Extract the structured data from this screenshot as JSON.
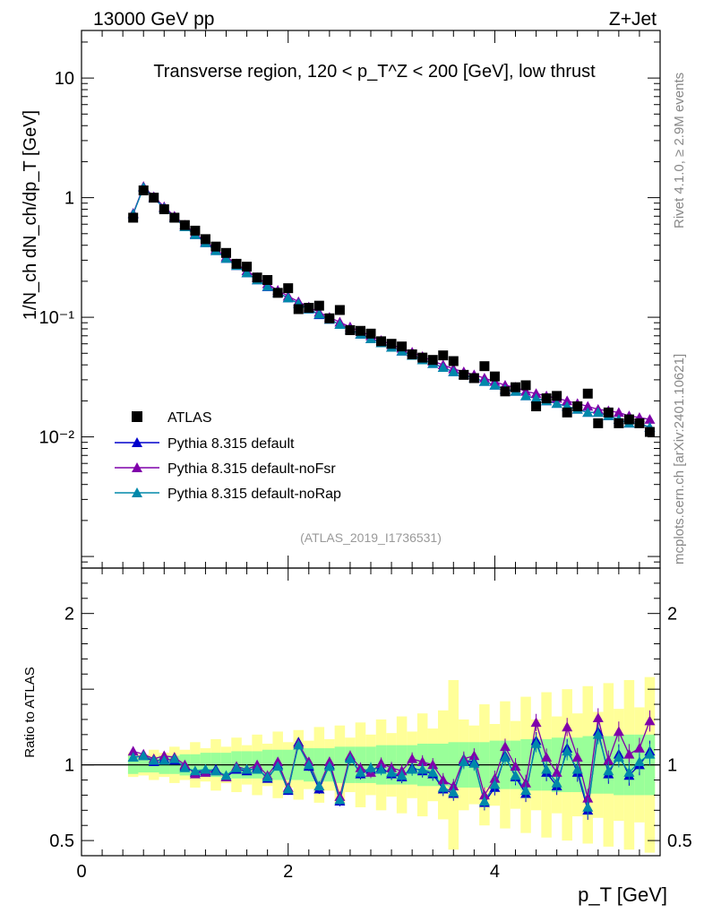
{
  "header": {
    "left": "13000 GeV pp",
    "right": "Z+Jet"
  },
  "side": {
    "rivet": "Rivet 4.1.0, ≥ 2.9M events",
    "mcplots": "mcplots.cern.ch [arXiv:2401.10621]"
  },
  "colors": {
    "atlas": "#000000",
    "default": "#0000cc",
    "noFsr": "#7f00aa",
    "noRap": "#0088aa",
    "band_inner": "#99ff99",
    "band_outer": "#ffff99"
  },
  "chart_data": [
    {
      "type": "scatter",
      "scale": "log",
      "title": "Transverse region, 120 < p_T^Z < 200 [GeV], low thrust",
      "ylabel": "1/N_ch dN_ch/dp_T [GeV]",
      "xlim": [
        0,
        5.6
      ],
      "ylim": [
        0.0008,
        25
      ],
      "yticks": [
        {
          "v": 10,
          "label": "10"
        },
        {
          "v": 1,
          "label": "1"
        },
        {
          "v": 0.1,
          "label": "10⁻¹"
        },
        {
          "v": 0.01,
          "label": "10⁻²"
        }
      ],
      "analysis_id": "(ATLAS_2019_I1736531)",
      "legend": [
        "ATLAS",
        "Pythia 8.315 default",
        "Pythia 8.315 default-noFsr",
        "Pythia 8.315 default-noRap"
      ],
      "x": [
        0.5,
        0.6,
        0.7,
        0.8,
        0.9,
        1.0,
        1.1,
        1.2,
        1.3,
        1.4,
        1.5,
        1.6,
        1.7,
        1.8,
        1.9,
        2.0,
        2.1,
        2.2,
        2.3,
        2.4,
        2.5,
        2.6,
        2.7,
        2.8,
        2.9,
        3.0,
        3.1,
        3.2,
        3.3,
        3.4,
        3.5,
        3.6,
        3.7,
        3.8,
        3.9,
        4.0,
        4.1,
        4.2,
        4.3,
        4.4,
        4.5,
        4.6,
        4.7,
        4.8,
        4.9,
        5.0,
        5.1,
        5.2,
        5.3,
        5.4,
        5.5
      ],
      "series": [
        {
          "name": "ATLAS",
          "values": [
            0.68,
            1.15,
            1.0,
            0.8,
            0.68,
            0.59,
            0.53,
            0.45,
            0.39,
            0.345,
            0.28,
            0.265,
            0.215,
            0.205,
            0.16,
            0.175,
            0.117,
            0.12,
            0.125,
            0.098,
            0.115,
            0.078,
            0.077,
            0.073,
            0.063,
            0.06,
            0.057,
            0.049,
            0.046,
            0.044,
            0.048,
            0.043,
            0.033,
            0.031,
            0.039,
            0.032,
            0.024,
            0.026,
            0.027,
            0.018,
            0.021,
            0.022,
            0.016,
            0.018,
            0.023,
            0.013,
            0.016,
            0.013,
            0.014,
            0.013,
            0.011
          ]
        },
        {
          "name": "Pythia 8.315 default",
          "values": [
            0.73,
            1.22,
            0.99,
            0.82,
            0.68,
            0.57,
            0.49,
            0.42,
            0.36,
            0.31,
            0.27,
            0.235,
            0.205,
            0.18,
            0.16,
            0.145,
            0.13,
            0.117,
            0.105,
            0.096,
            0.087,
            0.079,
            0.072,
            0.066,
            0.061,
            0.056,
            0.052,
            0.048,
            0.044,
            0.041,
            0.038,
            0.035,
            0.033,
            0.031,
            0.029,
            0.027,
            0.025,
            0.024,
            0.022,
            0.021,
            0.02,
            0.019,
            0.018,
            0.017,
            0.016,
            0.016,
            0.015,
            0.014,
            0.013,
            0.013,
            0.012
          ]
        },
        {
          "name": "Pythia 8.315 default-noFsr",
          "values": [
            0.74,
            1.24,
            1.02,
            0.84,
            0.7,
            0.59,
            0.5,
            0.43,
            0.37,
            0.32,
            0.28,
            0.245,
            0.215,
            0.19,
            0.168,
            0.15,
            0.135,
            0.122,
            0.11,
            0.1,
            0.091,
            0.083,
            0.076,
            0.07,
            0.064,
            0.059,
            0.055,
            0.051,
            0.047,
            0.043,
            0.04,
            0.037,
            0.035,
            0.033,
            0.031,
            0.029,
            0.027,
            0.026,
            0.024,
            0.023,
            0.022,
            0.021,
            0.02,
            0.019,
            0.018,
            0.017,
            0.0165,
            0.016,
            0.015,
            0.0145,
            0.014
          ]
        },
        {
          "name": "Pythia 8.315 default-noRap",
          "values": [
            0.73,
            1.22,
            1.0,
            0.82,
            0.68,
            0.57,
            0.49,
            0.42,
            0.36,
            0.31,
            0.27,
            0.235,
            0.205,
            0.181,
            0.161,
            0.145,
            0.13,
            0.117,
            0.106,
            0.096,
            0.087,
            0.079,
            0.072,
            0.066,
            0.061,
            0.056,
            0.052,
            0.048,
            0.044,
            0.041,
            0.038,
            0.035,
            0.033,
            0.031,
            0.029,
            0.027,
            0.025,
            0.024,
            0.022,
            0.021,
            0.02,
            0.019,
            0.018,
            0.017,
            0.016,
            0.016,
            0.015,
            0.014,
            0.013,
            0.013,
            0.012
          ]
        }
      ]
    },
    {
      "type": "line",
      "title": "",
      "xlabel": "p_T [GeV]",
      "ylabel": "Ratio to ATLAS",
      "xlim": [
        0,
        5.6
      ],
      "ylim": [
        0.4,
        2.3
      ],
      "xticks": [
        {
          "v": 0,
          "label": "0"
        },
        {
          "v": 2,
          "label": "2"
        },
        {
          "v": 4,
          "label": "4"
        }
      ],
      "yticks": [
        {
          "v": 0.5,
          "label": "0.5"
        },
        {
          "v": 1,
          "label": "1"
        },
        {
          "v": 2,
          "label": "2"
        }
      ],
      "x": [
        0.5,
        0.6,
        0.7,
        0.8,
        0.9,
        1.0,
        1.1,
        1.2,
        1.3,
        1.4,
        1.5,
        1.6,
        1.7,
        1.8,
        1.9,
        2.0,
        2.1,
        2.2,
        2.3,
        2.4,
        2.5,
        2.6,
        2.7,
        2.8,
        2.9,
        3.0,
        3.1,
        3.2,
        3.3,
        3.4,
        3.5,
        3.6,
        3.7,
        3.8,
        3.9,
        4.0,
        4.1,
        4.2,
        4.3,
        4.4,
        4.5,
        4.6,
        4.7,
        4.8,
        4.9,
        5.0,
        5.1,
        5.2,
        5.3,
        5.4,
        5.5
      ],
      "band_inner": [
        0.06,
        0.05,
        0.05,
        0.06,
        0.06,
        0.07,
        0.07,
        0.08,
        0.08,
        0.08,
        0.09,
        0.09,
        0.09,
        0.1,
        0.1,
        0.1,
        0.1,
        0.11,
        0.11,
        0.11,
        0.12,
        0.12,
        0.12,
        0.12,
        0.13,
        0.13,
        0.13,
        0.13,
        0.14,
        0.14,
        0.14,
        0.15,
        0.15,
        0.15,
        0.15,
        0.16,
        0.16,
        0.16,
        0.17,
        0.17,
        0.17,
        0.18,
        0.18,
        0.18,
        0.19,
        0.19,
        0.19,
        0.2,
        0.2,
        0.2,
        0.2
      ],
      "band_outer": [
        0.08,
        0.07,
        0.1,
        0.08,
        0.12,
        0.1,
        0.15,
        0.11,
        0.17,
        0.12,
        0.18,
        0.13,
        0.2,
        0.14,
        0.22,
        0.15,
        0.23,
        0.16,
        0.25,
        0.17,
        0.26,
        0.18,
        0.28,
        0.2,
        0.3,
        0.21,
        0.32,
        0.22,
        0.34,
        0.24,
        0.36,
        0.56,
        0.3,
        0.26,
        0.4,
        0.27,
        0.42,
        0.29,
        0.45,
        0.3,
        0.48,
        0.32,
        0.5,
        0.34,
        0.52,
        0.35,
        0.54,
        0.37,
        0.56,
        0.38,
        0.58
      ],
      "series": [
        {
          "name": "Pythia 8.315 default",
          "values": [
            1.05,
            1.06,
            1.02,
            1.04,
            1.03,
            0.99,
            0.95,
            0.96,
            0.97,
            0.92,
            0.97,
            0.96,
            0.98,
            0.91,
            1.0,
            0.83,
            1.15,
            0.99,
            0.84,
            1.0,
            0.76,
            1.05,
            0.94,
            0.97,
            0.98,
            0.94,
            0.92,
            0.98,
            0.96,
            0.94,
            0.84,
            0.81,
            1.03,
            1.02,
            0.75,
            0.85,
            1.06,
            0.92,
            0.81,
            1.16,
            0.95,
            0.86,
            1.11,
            0.95,
            0.7,
            1.22,
            0.94,
            1.07,
            0.93,
            1.0,
            1.09
          ]
        },
        {
          "name": "Pythia 8.315 default-noFsr",
          "values": [
            1.09,
            1.07,
            1.04,
            1.06,
            1.05,
            1.0,
            0.94,
            0.95,
            0.96,
            0.92,
            0.99,
            0.97,
            1.0,
            0.93,
            1.02,
            0.85,
            1.14,
            1.02,
            0.86,
            1.02,
            0.79,
            1.06,
            0.98,
            0.95,
            1.01,
            0.98,
            0.96,
            1.04,
            1.02,
            1.0,
            0.9,
            0.86,
            1.04,
            1.06,
            0.8,
            0.91,
            1.12,
            0.99,
            0.88,
            1.28,
            1.05,
            0.95,
            1.25,
            1.05,
            0.78,
            1.31,
            1.03,
            1.22,
            1.07,
            1.11,
            1.29
          ]
        },
        {
          "name": "Pythia 8.315 default-noRap",
          "values": [
            1.05,
            1.06,
            1.03,
            1.03,
            1.04,
            0.98,
            0.96,
            0.97,
            0.96,
            0.93,
            0.98,
            0.97,
            0.97,
            0.92,
            0.99,
            0.84,
            1.13,
            1.0,
            0.86,
            0.99,
            0.77,
            1.04,
            0.95,
            0.98,
            0.97,
            0.95,
            0.93,
            0.97,
            0.97,
            0.95,
            0.85,
            0.82,
            1.02,
            1.01,
            0.76,
            0.87,
            1.05,
            0.93,
            0.83,
            1.14,
            0.97,
            0.88,
            1.09,
            0.97,
            0.72,
            1.2,
            0.96,
            1.05,
            0.95,
            1.02,
            1.07
          ]
        }
      ]
    }
  ]
}
